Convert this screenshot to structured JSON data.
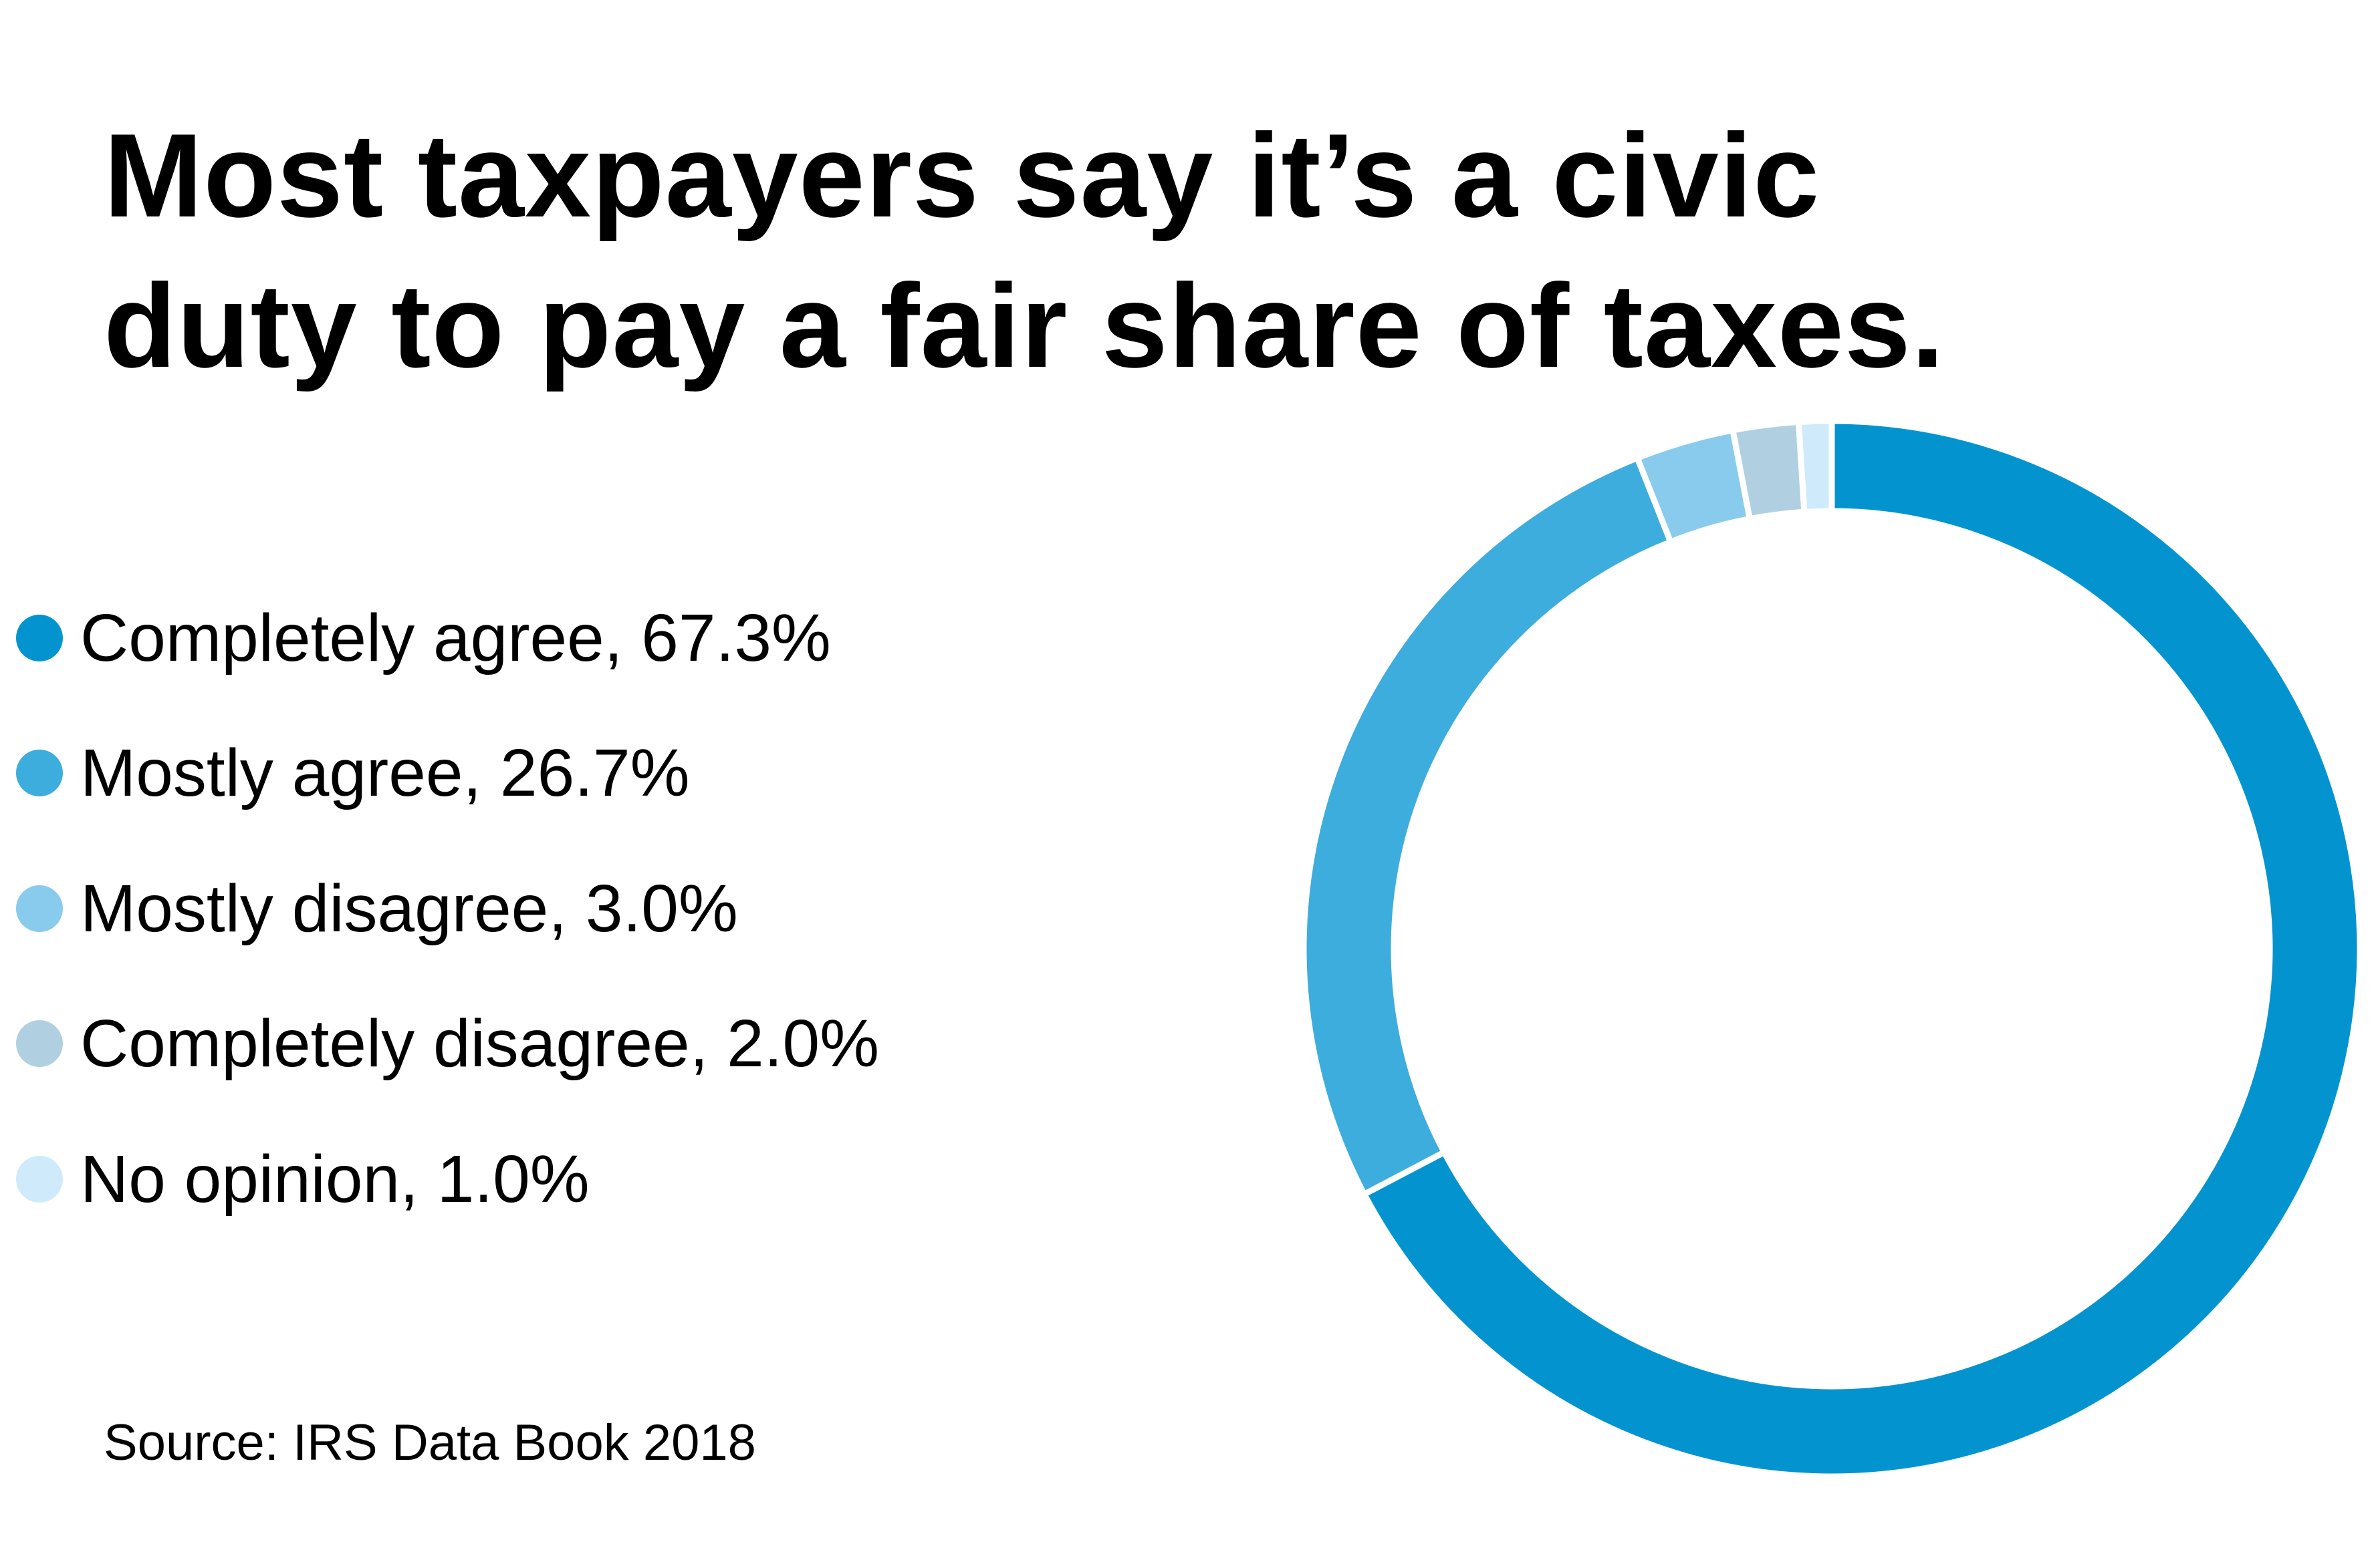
{
  "title_lines": [
    "Most taxpayers say it’s a civic",
    "duty to pay a fair share of taxes."
  ],
  "legend": {
    "items": [
      {
        "label": "Completely agree, 67.3%"
      },
      {
        "label": "Mostly agree, 26.7%"
      },
      {
        "label": "Mostly disagree, 3.0%"
      },
      {
        "label": "Completely disagree, 2.0%"
      },
      {
        "label": "No opinion, 1.0%"
      }
    ]
  },
  "source": "Source: IRS Data Book 2018",
  "colors": {
    "completely_agree": "#0394d0",
    "mostly_agree": "#3daddd",
    "mostly_disagree": "#89cbec",
    "completely_disagree": "#b0d0e2",
    "no_opinion": "#cfeafb",
    "separator": "#ffffff"
  },
  "chart_data": {
    "type": "pie",
    "variant": "donut",
    "title": "Most taxpayers say it’s a civic duty to pay a fair share of taxes.",
    "categories": [
      "Completely agree",
      "Mostly agree",
      "Mostly disagree",
      "Completely disagree",
      "No opinion"
    ],
    "values": [
      67.3,
      26.7,
      3.0,
      2.0,
      1.0
    ],
    "unit": "%",
    "colors": [
      "#0394d0",
      "#3daddd",
      "#89cbec",
      "#b0d0e2",
      "#cfeafb"
    ],
    "start_angle": "12 o'clock",
    "direction": "clockwise",
    "legend_placement": "left",
    "source": "Source: IRS Data Book 2018"
  }
}
